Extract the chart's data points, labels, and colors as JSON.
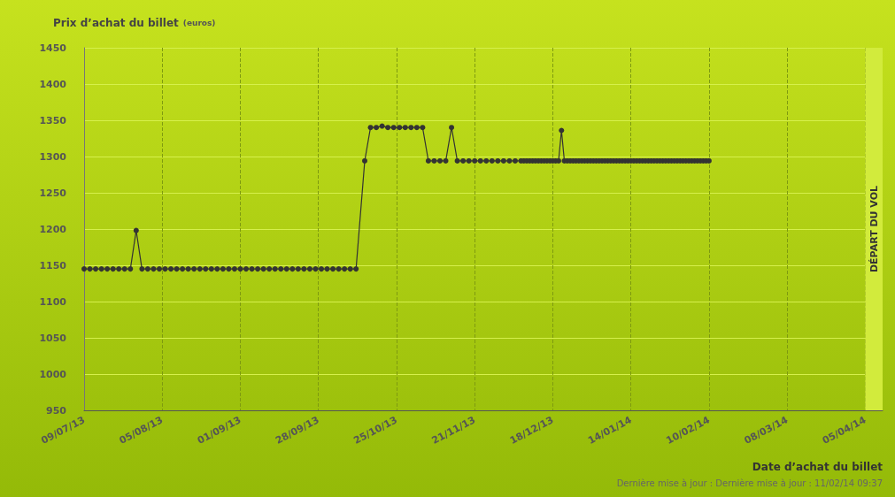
{
  "chart_data": {
    "type": "line",
    "title": "Prix d’achat du billet",
    "subtitle": "(euros)",
    "xlabel": "Date d’achat du billet",
    "annotations": [
      "Dernière mise à jour : Dernière mise à jour : 11/02/14 09:37"
    ],
    "xlim": [
      "2013-07-09",
      "2014-04-11"
    ],
    "xticks": [
      {
        "value": "2013-07-09",
        "label": "09/07/13"
      },
      {
        "value": "2013-08-05",
        "label": "05/08/13"
      },
      {
        "value": "2013-09-01",
        "label": "01/09/13"
      },
      {
        "value": "2013-09-28",
        "label": "28/09/13"
      },
      {
        "value": "2013-10-25",
        "label": "25/10/13"
      },
      {
        "value": "2013-11-21",
        "label": "21/11/13"
      },
      {
        "value": "2013-12-18",
        "label": "18/12/13"
      },
      {
        "value": "2014-01-14",
        "label": "14/01/14"
      },
      {
        "value": "2014-02-10",
        "label": "10/02/14"
      },
      {
        "value": "2014-03-09",
        "label": "08/03/14"
      },
      {
        "value": "2014-04-05",
        "label": "05/04/14"
      }
    ],
    "ylim": [
      950,
      1450
    ],
    "yticks": [
      950,
      1000,
      1050,
      1100,
      1150,
      1200,
      1250,
      1300,
      1350,
      1400,
      1450
    ],
    "grid": true,
    "marker": "circle",
    "line_style": "solid",
    "bands": [
      {
        "axis": "x",
        "from": "2014-04-05",
        "to": "2014-04-11",
        "label": "DÉPART DU VOL",
        "color": "#d2eb3c"
      }
    ],
    "series": [
      {
        "color": "#333333",
        "x": [
          "2013-07-09",
          "2013-07-11",
          "2013-07-13",
          "2013-07-15",
          "2013-07-17",
          "2013-07-19",
          "2013-07-21",
          "2013-07-23",
          "2013-07-25",
          "2013-07-27",
          "2013-07-29",
          "2013-07-31",
          "2013-08-02",
          "2013-08-04",
          "2013-08-06",
          "2013-08-08",
          "2013-08-10",
          "2013-08-12",
          "2013-08-14",
          "2013-08-16",
          "2013-08-18",
          "2013-08-20",
          "2013-08-22",
          "2013-08-24",
          "2013-08-26",
          "2013-08-28",
          "2013-08-30",
          "2013-09-01",
          "2013-09-03",
          "2013-09-05",
          "2013-09-07",
          "2013-09-09",
          "2013-09-11",
          "2013-09-13",
          "2013-09-15",
          "2013-09-17",
          "2013-09-19",
          "2013-09-21",
          "2013-09-23",
          "2013-09-25",
          "2013-09-27",
          "2013-09-29",
          "2013-10-01",
          "2013-10-03",
          "2013-10-05",
          "2013-10-07",
          "2013-10-09",
          "2013-10-11",
          "2013-10-14",
          "2013-10-16",
          "2013-10-18",
          "2013-10-20",
          "2013-10-22",
          "2013-10-24",
          "2013-10-26",
          "2013-10-28",
          "2013-10-30",
          "2013-11-01",
          "2013-11-03",
          "2013-11-05",
          "2013-11-07",
          "2013-11-09",
          "2013-11-11",
          "2013-11-13",
          "2013-11-15",
          "2013-11-17",
          "2013-11-19",
          "2013-11-21",
          "2013-11-23",
          "2013-11-25",
          "2013-11-27",
          "2013-11-29",
          "2013-12-01",
          "2013-12-03",
          "2013-12-05",
          "2013-12-07",
          "2013-12-08",
          "2013-12-09",
          "2013-12-10",
          "2013-12-11",
          "2013-12-12",
          "2013-12-13",
          "2013-12-14",
          "2013-12-15",
          "2013-12-16",
          "2013-12-17",
          "2013-12-18",
          "2013-12-19",
          "2013-12-20",
          "2013-12-21",
          "2013-12-22",
          "2013-12-23",
          "2013-12-24",
          "2013-12-25",
          "2013-12-26",
          "2013-12-27",
          "2013-12-28",
          "2013-12-29",
          "2013-12-30",
          "2013-12-31",
          "2014-01-01",
          "2014-01-02",
          "2014-01-03",
          "2014-01-04",
          "2014-01-05",
          "2014-01-06",
          "2014-01-07",
          "2014-01-08",
          "2014-01-09",
          "2014-01-10",
          "2014-01-11",
          "2014-01-12",
          "2014-01-13",
          "2014-01-14",
          "2014-01-15",
          "2014-01-16",
          "2014-01-17",
          "2014-01-18",
          "2014-01-19",
          "2014-01-20",
          "2014-01-21",
          "2014-01-22",
          "2014-01-23",
          "2014-01-24",
          "2014-01-25",
          "2014-01-26",
          "2014-01-27",
          "2014-01-28",
          "2014-01-29",
          "2014-01-30",
          "2014-01-31",
          "2014-02-01",
          "2014-02-02",
          "2014-02-03",
          "2014-02-04",
          "2014-02-05",
          "2014-02-06",
          "2014-02-07",
          "2014-02-08",
          "2014-02-09",
          "2014-02-10"
        ],
        "values": [
          1145,
          1145,
          1145,
          1145,
          1145,
          1145,
          1145,
          1145,
          1145,
          1198,
          1145,
          1145,
          1145,
          1145,
          1145,
          1145,
          1145,
          1145,
          1145,
          1145,
          1145,
          1145,
          1145,
          1145,
          1145,
          1145,
          1145,
          1145,
          1145,
          1145,
          1145,
          1145,
          1145,
          1145,
          1145,
          1145,
          1145,
          1145,
          1145,
          1145,
          1145,
          1145,
          1145,
          1145,
          1145,
          1145,
          1145,
          1145,
          1294,
          1340,
          1340,
          1342,
          1340,
          1340,
          1340,
          1340,
          1340,
          1340,
          1340,
          1294,
          1294,
          1294,
          1294,
          1340,
          1294,
          1294,
          1294,
          1294,
          1294,
          1294,
          1294,
          1294,
          1294,
          1294,
          1294,
          1294,
          1294,
          1294,
          1294,
          1294,
          1294,
          1294,
          1294,
          1294,
          1294,
          1294,
          1294,
          1294,
          1294,
          1336,
          1294,
          1294,
          1294,
          1294,
          1294,
          1294,
          1294,
          1294,
          1294,
          1294,
          1294,
          1294,
          1294,
          1294,
          1294,
          1294,
          1294,
          1294,
          1294,
          1294,
          1294,
          1294,
          1294,
          1294,
          1294,
          1294,
          1294,
          1294,
          1294,
          1294,
          1294,
          1294,
          1294,
          1294,
          1294,
          1294,
          1294,
          1294,
          1294,
          1294,
          1294,
          1294,
          1294,
          1294,
          1294,
          1294,
          1294,
          1294,
          1294,
          1294,
          1294
        ]
      }
    ]
  }
}
